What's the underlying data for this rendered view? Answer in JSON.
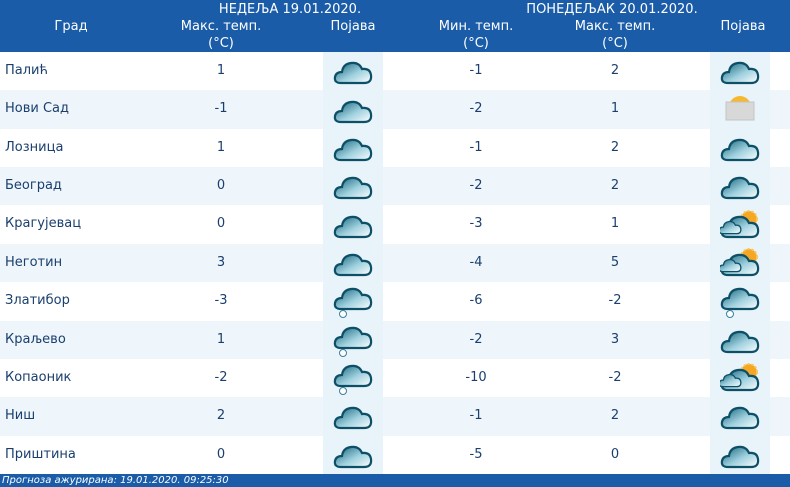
{
  "header": {
    "day1": "НЕДЕЉА  19.01.2020.",
    "day2": "ПОНЕДЕЉАК  20.01.2020.",
    "city": "Град",
    "max1": "Макс. темп.",
    "unit": "(°C)",
    "phen": "Појава",
    "min2": "Мин. темп.",
    "max2": "Макс. темп."
  },
  "rows": [
    {
      "city": "Палић",
      "max1": "1",
      "icon1": "cloud-icon",
      "min2": "-1",
      "max2": "2",
      "icon2": "cloud-icon"
    },
    {
      "city": "Нови Сад",
      "max1": "-1",
      "icon1": "cloud-icon",
      "min2": "-2",
      "max2": "1",
      "icon2": "fog-sun-icon"
    },
    {
      "city": "Лозница",
      "max1": "1",
      "icon1": "cloud-icon",
      "min2": "-1",
      "max2": "2",
      "icon2": "cloud-icon"
    },
    {
      "city": "Београд",
      "max1": "0",
      "icon1": "cloud-icon",
      "min2": "-2",
      "max2": "2",
      "icon2": "cloud-icon"
    },
    {
      "city": "Крагујевац",
      "max1": "0",
      "icon1": "cloud-icon",
      "min2": "-3",
      "max2": "1",
      "icon2": "cloud-sun-icon"
    },
    {
      "city": "Неготин",
      "max1": "3",
      "icon1": "cloud-icon",
      "min2": "-4",
      "max2": "5",
      "icon2": "cloud-sun-icon"
    },
    {
      "city": "Златибор",
      "max1": "-3",
      "icon1": "cloud-snow-icon",
      "min2": "-6",
      "max2": "-2",
      "icon2": "cloud-snow-icon"
    },
    {
      "city": "Краљево",
      "max1": "1",
      "icon1": "cloud-snow-icon",
      "min2": "-2",
      "max2": "3",
      "icon2": "cloud-icon"
    },
    {
      "city": "Копаоник",
      "max1": "-2",
      "icon1": "cloud-snow-icon",
      "min2": "-10",
      "max2": "-2",
      "icon2": "cloud-sun-icon"
    },
    {
      "city": "Ниш",
      "max1": "2",
      "icon1": "cloud-icon",
      "min2": "-1",
      "max2": "2",
      "icon2": "cloud-icon"
    },
    {
      "city": "Приштина",
      "max1": "0",
      "icon1": "cloud-icon",
      "min2": "-5",
      "max2": "0",
      "icon2": "cloud-icon"
    }
  ],
  "footer": "Прогноза ажурирана:  19.01.2020. 09:25:30",
  "colors": {
    "header": "#1a5ca8",
    "alt_row": "#eef6fb",
    "text": "#1a3f6e"
  }
}
